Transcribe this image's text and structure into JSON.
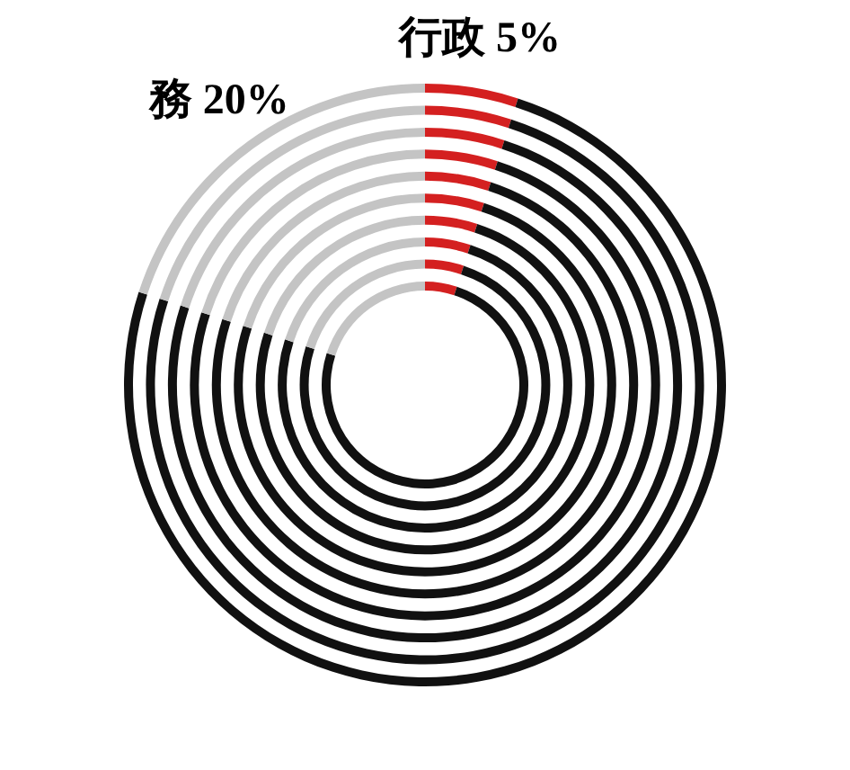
{
  "chart_data": {
    "type": "donut",
    "categories": [
      "行政",
      null,
      "務"
    ],
    "colors": [
      "#d42020",
      "#111111",
      "#c4c4c4"
    ],
    "value_labels": [
      "5%",
      null,
      "20%"
    ],
    "series": [
      {
        "values": [
          5,
          75,
          20
        ]
      },
      {
        "values": [
          5,
          75,
          20
        ]
      },
      {
        "values": [
          5,
          75,
          20
        ]
      },
      {
        "values": [
          5,
          75,
          20
        ]
      },
      {
        "values": [
          5,
          75,
          20
        ]
      },
      {
        "values": [
          5,
          75,
          20
        ]
      },
      {
        "values": [
          5,
          75,
          20
        ]
      },
      {
        "values": [
          5,
          75,
          20
        ]
      },
      {
        "values": [
          5,
          75,
          20
        ]
      },
      {
        "values": [
          5,
          75,
          20
        ]
      }
    ],
    "legend": false
  }
}
